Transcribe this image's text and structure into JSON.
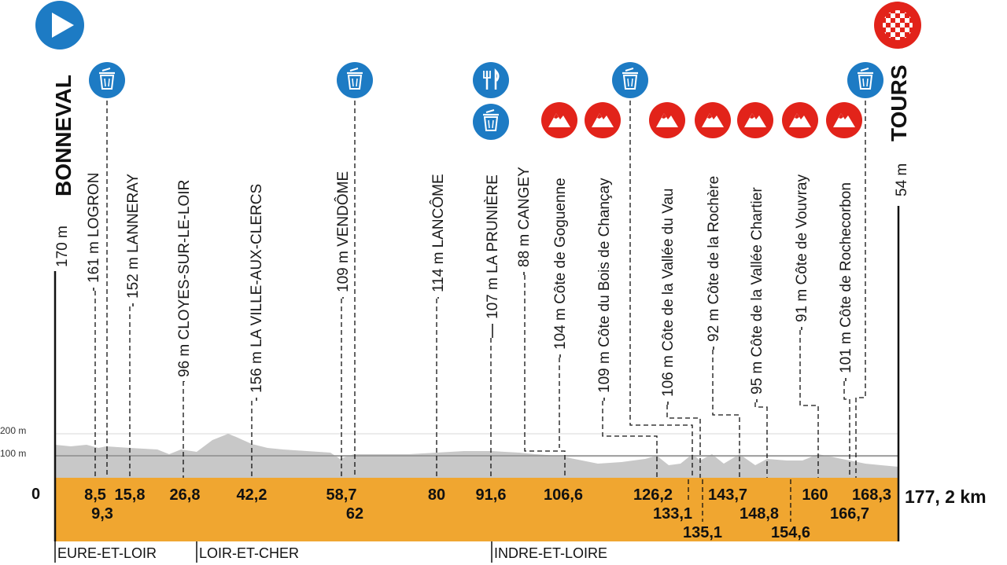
{
  "start": {
    "name": "BONNEVAL",
    "altitude": "170 m",
    "icon": "start-arrow-icon"
  },
  "finish": {
    "name": "TOURS",
    "altitude": "54 m",
    "icon": "finish-flag-icon"
  },
  "scale": {
    "zero": "0",
    "mid": "100 m",
    "top": "200 m"
  },
  "total_distance": "177, 2 km",
  "colors": {
    "base": "#f0a630",
    "relief": "#c8c8c8",
    "marker": "#1d7bc4",
    "climb": "#e2231a",
    "finish": "#e2231a"
  },
  "points": [
    {
      "label": "161 m LOGRON",
      "km": "8,5"
    },
    {
      "label": "152 m LANNERAY",
      "km": "15,8"
    },
    {
      "label": "96 m CLOYES-SUR-LE-LOIR",
      "km": "26,8"
    },
    {
      "label": "156 m LA VILLE-AUX-CLERCS",
      "km": "42,2"
    },
    {
      "label": "109 m VENDÔME",
      "km": "58,7"
    },
    {
      "label": "114 m LANCÔME",
      "km": "80"
    },
    {
      "label": "107 m LA PRUNIÈRE",
      "km": "91,6"
    },
    {
      "label": "88 m CANGEY",
      "km": ""
    },
    {
      "label": "104 m Côte de Goguenne",
      "km": "106,6"
    },
    {
      "label": "109 m Côte du Bois de Chançay",
      "km": ""
    },
    {
      "label": "106 m Côte de la Vallée du Vau",
      "km": ""
    },
    {
      "label": "92 m Côte de la Rochère",
      "km": ""
    },
    {
      "label": "95 m Côte de la Vallée Chartier",
      "km": ""
    },
    {
      "label": "91 m Côte de Vouvray",
      "km": ""
    },
    {
      "label": "101 m Côte de Rochecorbon",
      "km": ""
    }
  ],
  "km_upper": [
    "8,5",
    "15,8",
    "26,8",
    "42,2",
    "58,7",
    "80",
    "91,6",
    "106,6",
    "126,2",
    "143,7",
    "160",
    "168,3"
  ],
  "km_lower": [
    "9,3",
    "62",
    "133,1",
    "148,8",
    "166,7"
  ],
  "km_lowest": [
    "135,1",
    "154,6"
  ],
  "regions": [
    "EURE-ET-LOIR",
    "LOIR-ET-CHER",
    "INDRE-ET-LOIRE"
  ],
  "icons": {
    "feed": [
      "trash-can-icon",
      "trash-can-icon",
      "trash-can-icon",
      "trash-can-icon",
      "trash-can-icon",
      "trash-can-icon"
    ],
    "food": "knife-fork-icon",
    "climbs": 7
  }
}
